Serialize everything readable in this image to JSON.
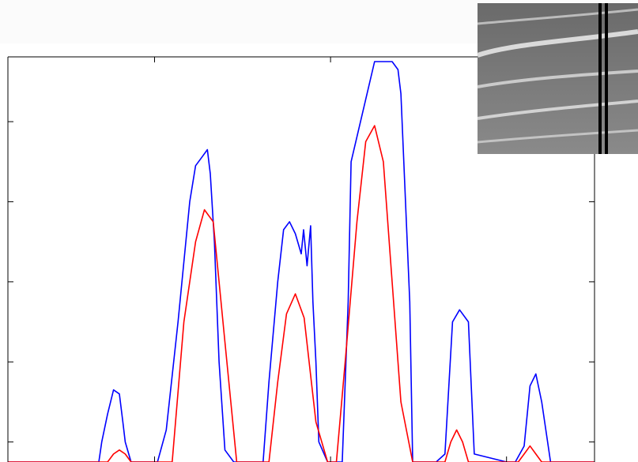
{
  "chart_data": {
    "type": "line",
    "title": "",
    "xlabel": "",
    "ylabel": "",
    "xlim": [
      0,
      100
    ],
    "ylim": [
      0,
      100
    ],
    "grid": false,
    "legend": "none",
    "x_ticks": [
      25,
      55,
      85
    ],
    "y_ticks": [
      5,
      25,
      45,
      65,
      85
    ],
    "series": [
      {
        "color": "#0000ff",
        "x": [
          0,
          15.5,
          16.0,
          17.0,
          18.0,
          19.0,
          19.6,
          20.0,
          21.0,
          22.5,
          25.5,
          27.0,
          29.0,
          31.0,
          32.0,
          33.0,
          34.0,
          34.5,
          35.2,
          36.0,
          37.0,
          38.5,
          39.0,
          43.5,
          44.5,
          46.0,
          47.0,
          48.0,
          49.0,
          50.0,
          50.4,
          51.0,
          51.6,
          52.0,
          52.5,
          53.0,
          54.5,
          56.0,
          57.0,
          58.0,
          58.5,
          62.5,
          64.0,
          65.5,
          66.5,
          67.0,
          68.5,
          69.0,
          71.5,
          73.0,
          74.5,
          75.8,
          77.0,
          78.5,
          79.5,
          85.0,
          86.5,
          88.0,
          89.0,
          90.0,
          91.0,
          92.5,
          100
        ],
        "y": [
          0,
          0,
          5,
          12,
          18,
          17,
          10,
          5,
          0,
          0,
          0,
          8,
          35,
          65,
          74,
          76,
          78,
          72,
          55,
          25,
          3,
          0,
          0,
          0,
          20,
          45,
          58,
          60,
          57,
          52,
          58,
          49,
          59,
          40,
          25,
          5,
          0,
          0,
          0,
          40,
          75,
          100,
          100,
          100,
          98,
          92,
          40,
          0,
          0,
          0,
          2,
          35,
          38,
          35,
          2,
          0,
          0,
          4,
          19,
          22,
          15,
          0,
          0
        ]
      },
      {
        "color": "#ff0000",
        "x": [
          0,
          17.0,
          18.0,
          19.0,
          20.0,
          21.0,
          28.0,
          30.0,
          32.0,
          33.5,
          35.0,
          37.0,
          39.0,
          44.5,
          46.0,
          47.5,
          49.0,
          50.5,
          52.5,
          54.5,
          56.0,
          57.5,
          59.5,
          61.0,
          62.5,
          64.0,
          65.5,
          67.0,
          69.0,
          74.5,
          75.5,
          76.5,
          77.5,
          78.5,
          87.0,
          88.0,
          89.0,
          90.0,
          91.0,
          100
        ],
        "y": [
          0,
          0,
          2,
          3,
          2,
          0,
          0,
          35,
          55,
          63,
          60,
          30,
          0,
          0,
          20,
          37,
          42,
          36,
          10,
          0,
          0,
          25,
          60,
          80,
          84,
          75,
          45,
          15,
          0,
          0,
          5,
          8,
          5,
          0,
          0,
          2,
          4,
          2,
          0,
          0
        ]
      }
    ]
  }
}
